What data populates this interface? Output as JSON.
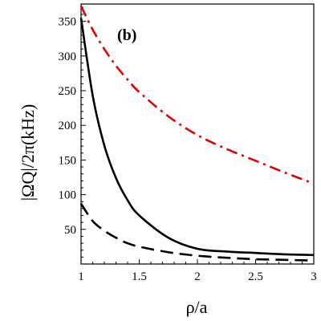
{
  "chart_data": {
    "type": "line",
    "panel_label": "(b)",
    "xlabel": "ρ/a",
    "ylabel": "|ΩQ|/2π(kHz)",
    "xlim": [
      1,
      3
    ],
    "ylim": [
      0,
      375
    ],
    "x_ticks": [
      1,
      1.5,
      2,
      2.5,
      3
    ],
    "x_tick_labels": [
      "1",
      "1.5",
      "2",
      "2.5",
      "3"
    ],
    "y_ticks": [
      50,
      100,
      150,
      200,
      250,
      300,
      350
    ],
    "y_tick_labels": [
      "50",
      "100",
      "150",
      "200",
      "250",
      "300",
      "350"
    ],
    "grid": false,
    "series": [
      {
        "style": "solid",
        "color": "#000000",
        "x": [
          1.0,
          1.1,
          1.2,
          1.3,
          1.4,
          1.5,
          1.75,
          2.0,
          2.25,
          2.5,
          2.75,
          3.0
        ],
        "y": [
          355,
          243,
          171,
          124,
          92,
          70,
          38,
          22,
          18,
          16,
          14,
          13
        ]
      },
      {
        "style": "dashdot",
        "color": "#e00000",
        "x": [
          1.0,
          1.1,
          1.2,
          1.3,
          1.4,
          1.5,
          1.75,
          2.0,
          2.25,
          2.5,
          2.75,
          3.0
        ],
        "y": [
          372,
          338,
          310,
          286,
          266,
          248,
          213,
          186,
          166,
          149,
          132,
          116
        ]
      },
      {
        "style": "dashed",
        "color": "#000000",
        "x": [
          1.0,
          1.1,
          1.2,
          1.3,
          1.4,
          1.5,
          1.75,
          2.0,
          2.25,
          2.5,
          2.75,
          3.0
        ],
        "y": [
          87,
          62,
          48,
          38,
          30,
          25,
          17,
          12,
          9,
          7,
          6,
          5
        ]
      }
    ]
  }
}
